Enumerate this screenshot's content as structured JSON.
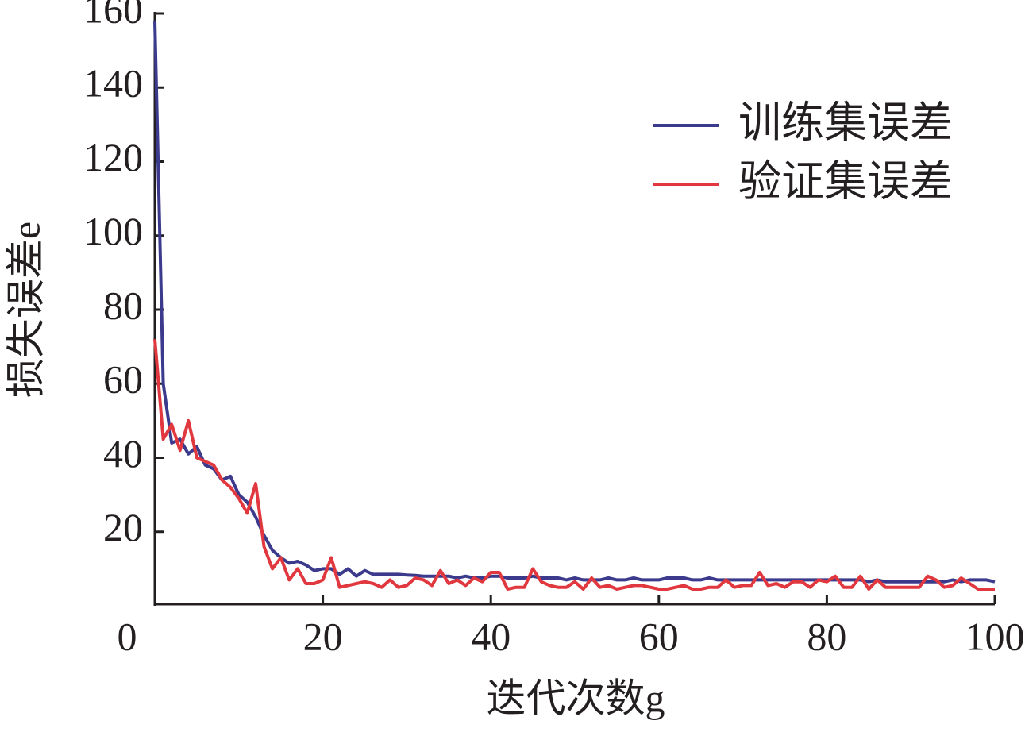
{
  "chart_data": {
    "type": "line",
    "xlabel": "迭代次数g",
    "ylabel": "损失误差e",
    "x": [
      0,
      1,
      2,
      3,
      4,
      5,
      6,
      7,
      8,
      9,
      10,
      11,
      12,
      13,
      14,
      15,
      16,
      17,
      18,
      19,
      20,
      21,
      22,
      23,
      24,
      25,
      26,
      27,
      28,
      29,
      30,
      31,
      32,
      33,
      34,
      35,
      36,
      37,
      38,
      39,
      40,
      41,
      42,
      43,
      44,
      45,
      46,
      47,
      48,
      49,
      50,
      51,
      52,
      53,
      54,
      55,
      56,
      57,
      58,
      59,
      60,
      61,
      62,
      63,
      64,
      65,
      66,
      67,
      68,
      69,
      70,
      71,
      72,
      73,
      74,
      75,
      76,
      77,
      78,
      79,
      80,
      81,
      82,
      83,
      84,
      85,
      86,
      87,
      88,
      89,
      90,
      91,
      92,
      93,
      94,
      95,
      96,
      97,
      98,
      99,
      100
    ],
    "series": [
      {
        "name": "训练集误差",
        "color": "#3b3a8c",
        "values": [
          158,
          60,
          44,
          45,
          41,
          43,
          38,
          37,
          34,
          35,
          30,
          28,
          24,
          19,
          15,
          13,
          11.5,
          12,
          11,
          9.5,
          10,
          10,
          8.5,
          10,
          8,
          9.5,
          8.5,
          8.5,
          8.5,
          8.5,
          8.3,
          8.2,
          8,
          8,
          8,
          8,
          7.5,
          8,
          7.5,
          7.5,
          8,
          8,
          7.5,
          7.5,
          7.5,
          8,
          7.5,
          7.5,
          7.5,
          7,
          7.5,
          7,
          7,
          7,
          7.5,
          7,
          7,
          7.5,
          7,
          7,
          7,
          7.5,
          7.5,
          7.5,
          7,
          7,
          7.5,
          7,
          7,
          7,
          7,
          7,
          7,
          7,
          7,
          7,
          7,
          7,
          7,
          7,
          7,
          7,
          7,
          7,
          7,
          6.5,
          7,
          6.5,
          6.5,
          6.5,
          6.5,
          6.5,
          6.5,
          6.5,
          6.5,
          7,
          6.5,
          7,
          7,
          7,
          6.5
        ]
      },
      {
        "name": "验证集误差",
        "color": "#e0383e",
        "values": [
          72,
          45,
          49,
          42,
          50,
          40,
          39,
          38,
          34,
          32,
          29,
          25,
          33,
          16,
          10,
          13,
          7,
          10,
          6,
          6,
          7,
          13,
          5,
          5.5,
          6,
          6.5,
          6,
          5,
          7,
          5,
          5.5,
          7.5,
          7,
          5.5,
          9.5,
          6,
          7,
          5.5,
          7.5,
          6.5,
          9,
          9,
          4.5,
          5,
          5,
          10,
          6.5,
          5.5,
          5,
          5,
          6.5,
          4.5,
          7.5,
          5,
          5.5,
          4.5,
          5,
          5.5,
          5.5,
          5,
          4.5,
          4.5,
          5,
          5.5,
          4.5,
          4.5,
          5,
          5,
          7,
          5,
          5.5,
          5.5,
          9,
          5.5,
          6,
          5,
          6.5,
          6.5,
          5,
          7,
          6.5,
          8,
          5,
          5,
          8,
          4.5,
          7,
          5,
          5,
          5,
          5,
          5,
          8,
          7,
          5,
          5.5,
          7.5,
          6,
          4.5,
          4.5,
          4.5
        ]
      }
    ],
    "xlim": [
      0,
      100
    ],
    "xticks": [
      0,
      20,
      40,
      60,
      80,
      100
    ],
    "ylim": [
      0,
      160
    ],
    "yticks": [
      20,
      40,
      60,
      80,
      100,
      120,
      140,
      160
    ],
    "legend": "upper right"
  }
}
